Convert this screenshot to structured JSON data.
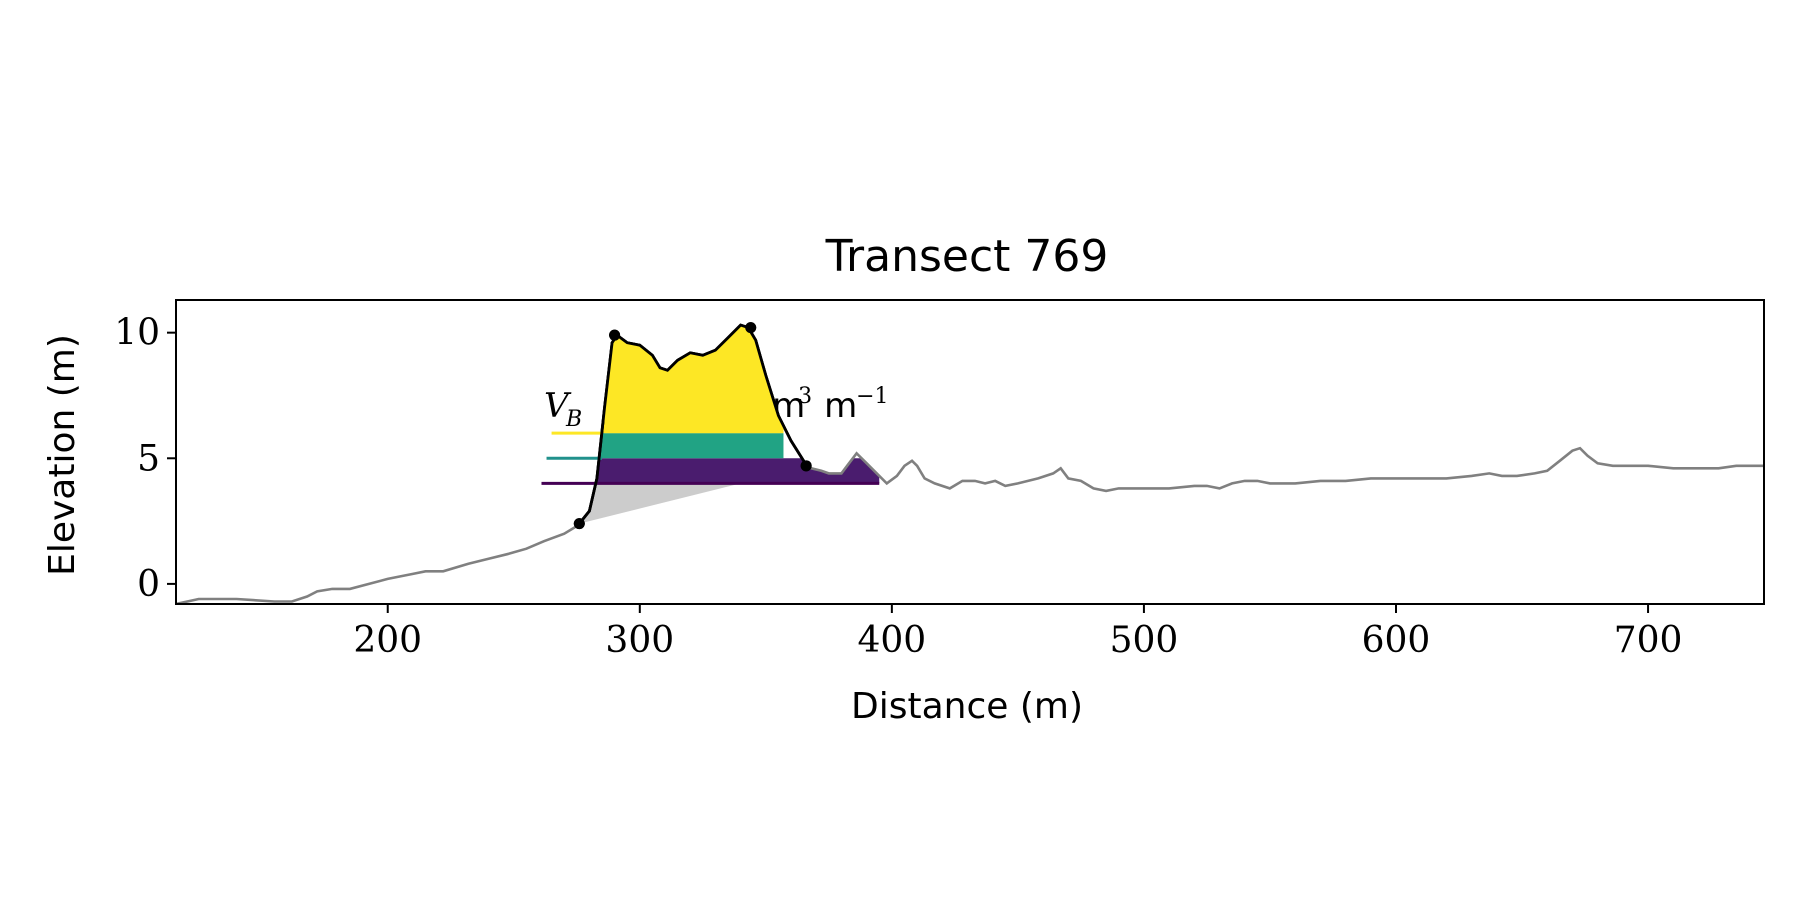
{
  "chart_data": {
    "type": "line",
    "title": "Transect 769",
    "xlabel": "Distance (m)",
    "ylabel": "Elevation (m)",
    "xlim": [
      116,
      746
    ],
    "ylim": [
      -0.8,
      11.3
    ],
    "xticks": [
      200,
      300,
      400,
      500,
      600,
      700
    ],
    "yticks": [
      0,
      5,
      10
    ],
    "grid": false,
    "series": [
      {
        "role": "profile",
        "color": "#808080",
        "x": [
          116,
          125,
          140,
          155,
          162,
          168,
          172,
          178,
          185,
          200,
          210,
          215,
          222,
          232,
          240,
          248,
          255,
          262,
          270,
          275,
          276,
          280,
          283,
          286,
          289,
          291,
          295,
          300,
          305,
          308,
          311,
          315,
          320,
          325,
          330,
          335,
          340,
          343,
          346,
          350,
          355,
          360,
          365,
          368,
          372,
          375,
          380,
          383,
          386,
          390,
          395,
          398,
          402,
          405,
          408,
          410,
          413,
          417,
          423,
          428,
          433,
          437,
          441,
          445,
          450,
          458,
          464,
          467,
          470,
          475,
          480,
          485,
          490,
          495,
          500,
          505,
          510,
          520,
          525,
          530,
          535,
          540,
          545,
          550,
          560,
          570,
          580,
          590,
          600,
          610,
          620,
          630,
          637,
          642,
          648,
          655,
          660,
          665,
          670,
          673,
          676,
          680,
          686,
          693,
          700,
          710,
          720,
          728,
          735,
          740,
          746
        ],
        "y": [
          -0.8,
          -0.6,
          -0.6,
          -0.7,
          -0.7,
          -0.5,
          -0.3,
          -0.2,
          -0.2,
          0.2,
          0.4,
          0.5,
          0.5,
          0.8,
          1.0,
          1.2,
          1.4,
          1.7,
          2.0,
          2.3,
          2.4,
          2.9,
          4.2,
          7.0,
          9.6,
          9.9,
          9.6,
          9.5,
          9.1,
          8.6,
          8.5,
          8.9,
          9.2,
          9.1,
          9.3,
          9.8,
          10.3,
          10.2,
          9.7,
          8.3,
          6.7,
          5.7,
          4.9,
          4.6,
          4.5,
          4.4,
          4.4,
          4.8,
          5.2,
          4.8,
          4.3,
          4.0,
          4.3,
          4.7,
          4.9,
          4.7,
          4.2,
          4.0,
          3.8,
          4.1,
          4.1,
          4.0,
          4.1,
          3.9,
          4.0,
          4.2,
          4.4,
          4.6,
          4.2,
          4.1,
          3.8,
          3.7,
          3.8,
          3.8,
          3.8,
          3.8,
          3.8,
          3.9,
          3.9,
          3.8,
          4.0,
          4.1,
          4.1,
          4.0,
          4.0,
          4.1,
          4.1,
          4.2,
          4.2,
          4.2,
          4.2,
          4.3,
          4.4,
          4.3,
          4.3,
          4.4,
          4.5,
          4.9,
          5.3,
          5.4,
          5.1,
          4.8,
          4.7,
          4.7,
          4.7,
          4.6,
          4.6,
          4.6,
          4.7,
          4.7,
          4.7
        ]
      },
      {
        "role": "dune-outline",
        "color": "#000000",
        "x": [
          276,
          280,
          283,
          286,
          289,
          291,
          295,
          300,
          305,
          308,
          311,
          315,
          320,
          325,
          330,
          335,
          340,
          343,
          346,
          350,
          355,
          360,
          365,
          366
        ],
        "y": [
          2.4,
          2.9,
          4.2,
          7.0,
          9.6,
          9.9,
          9.6,
          9.5,
          9.1,
          8.6,
          8.5,
          8.9,
          9.2,
          9.1,
          9.3,
          9.8,
          10.3,
          10.2,
          9.7,
          8.3,
          6.7,
          5.7,
          4.9,
          4.7
        ]
      }
    ],
    "key_points": [
      {
        "x": 276,
        "y": 2.4
      },
      {
        "x": 290,
        "y": 9.9
      },
      {
        "x": 344,
        "y": 10.2
      },
      {
        "x": 366,
        "y": 4.7
      }
    ],
    "baseline_fill": {
      "x": [
        276,
        340
      ],
      "y": [
        2.4,
        4.0
      ],
      "color": "#cccccc"
    },
    "layers": [
      {
        "y_from": 4.0,
        "y_to": 5.0,
        "x_from": 283,
        "x_to": 395,
        "color": "#4a1c6e",
        "legend_line": {
          "x": [
            261,
            395
          ],
          "color": "#440154"
        }
      },
      {
        "y_from": 5.0,
        "y_to": 6.0,
        "x_from": 284,
        "x_to": 357,
        "color": "#21a384",
        "legend_line": {
          "x": [
            263,
            285
          ],
          "color": "#21918c"
        }
      },
      {
        "y_from": 6.0,
        "y_to": 10.4,
        "x_from": 285,
        "x_to": 357,
        "color": "#fde725",
        "legend_line": {
          "x": [
            265,
            285
          ],
          "color": "#fde725"
        }
      }
    ],
    "annotation": {
      "prefix": "V",
      "subscript": "B",
      "unit": "m",
      "unit_power": "3",
      "per": "m",
      "per_power": "−1"
    }
  }
}
